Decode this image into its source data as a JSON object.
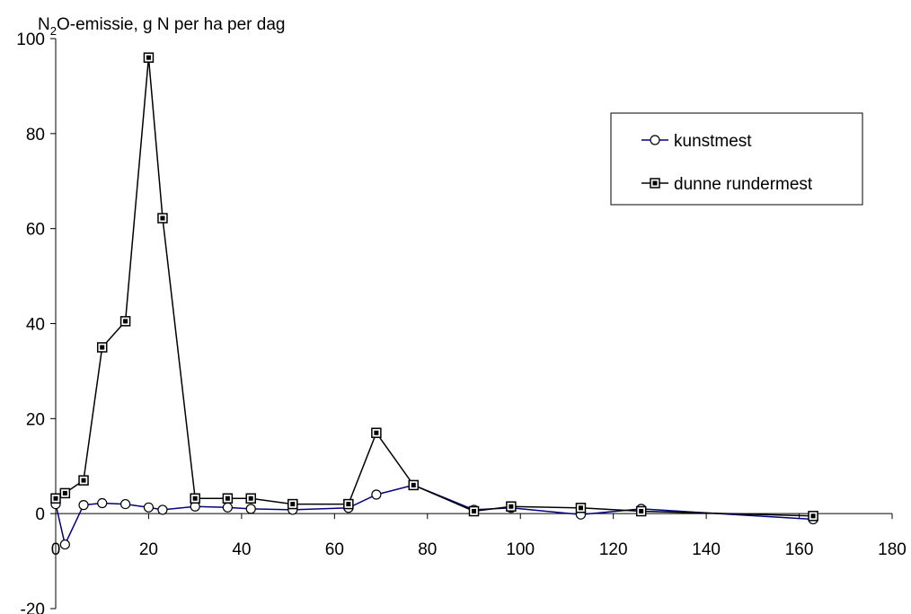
{
  "chart_data": {
    "type": "line",
    "title": "",
    "ylabel_prefix": "N",
    "ylabel_subscript": "2",
    "ylabel_suffix": "O-emissie, g N per ha per dag",
    "xlabel": "",
    "xlim": [
      0,
      180
    ],
    "ylim": [
      -20,
      100
    ],
    "x_ticks": [
      0,
      20,
      40,
      60,
      80,
      100,
      120,
      140,
      160,
      180
    ],
    "y_ticks": [
      -20,
      0,
      20,
      40,
      60,
      80,
      100
    ],
    "grid": false,
    "legend_position": "top-right",
    "series": [
      {
        "name": "kunstmest",
        "color": "#000080",
        "marker": "circle",
        "x": [
          0,
          2,
          6,
          10,
          15,
          20,
          23,
          30,
          37,
          42,
          51,
          63,
          69,
          77,
          90,
          98,
          113,
          126,
          163
        ],
        "y": [
          2,
          -6.5,
          1.8,
          2.2,
          2.0,
          1.3,
          0.8,
          1.5,
          1.3,
          1.0,
          0.8,
          1.2,
          4.0,
          6.0,
          0.8,
          1.2,
          -0.2,
          1.0,
          -1.2
        ]
      },
      {
        "name": "dunne rundermest",
        "color": "#000000",
        "marker": "square",
        "x": [
          0,
          2,
          6,
          10,
          15,
          20,
          23,
          30,
          37,
          42,
          51,
          63,
          69,
          77,
          90,
          98,
          113,
          126,
          163
        ],
        "y": [
          3.2,
          4.3,
          7.0,
          35.0,
          40.5,
          96.0,
          62.2,
          3.2,
          3.2,
          3.2,
          2.0,
          2.0,
          17.0,
          6.0,
          0.5,
          1.5,
          1.2,
          0.5,
          -0.5
        ]
      }
    ]
  }
}
